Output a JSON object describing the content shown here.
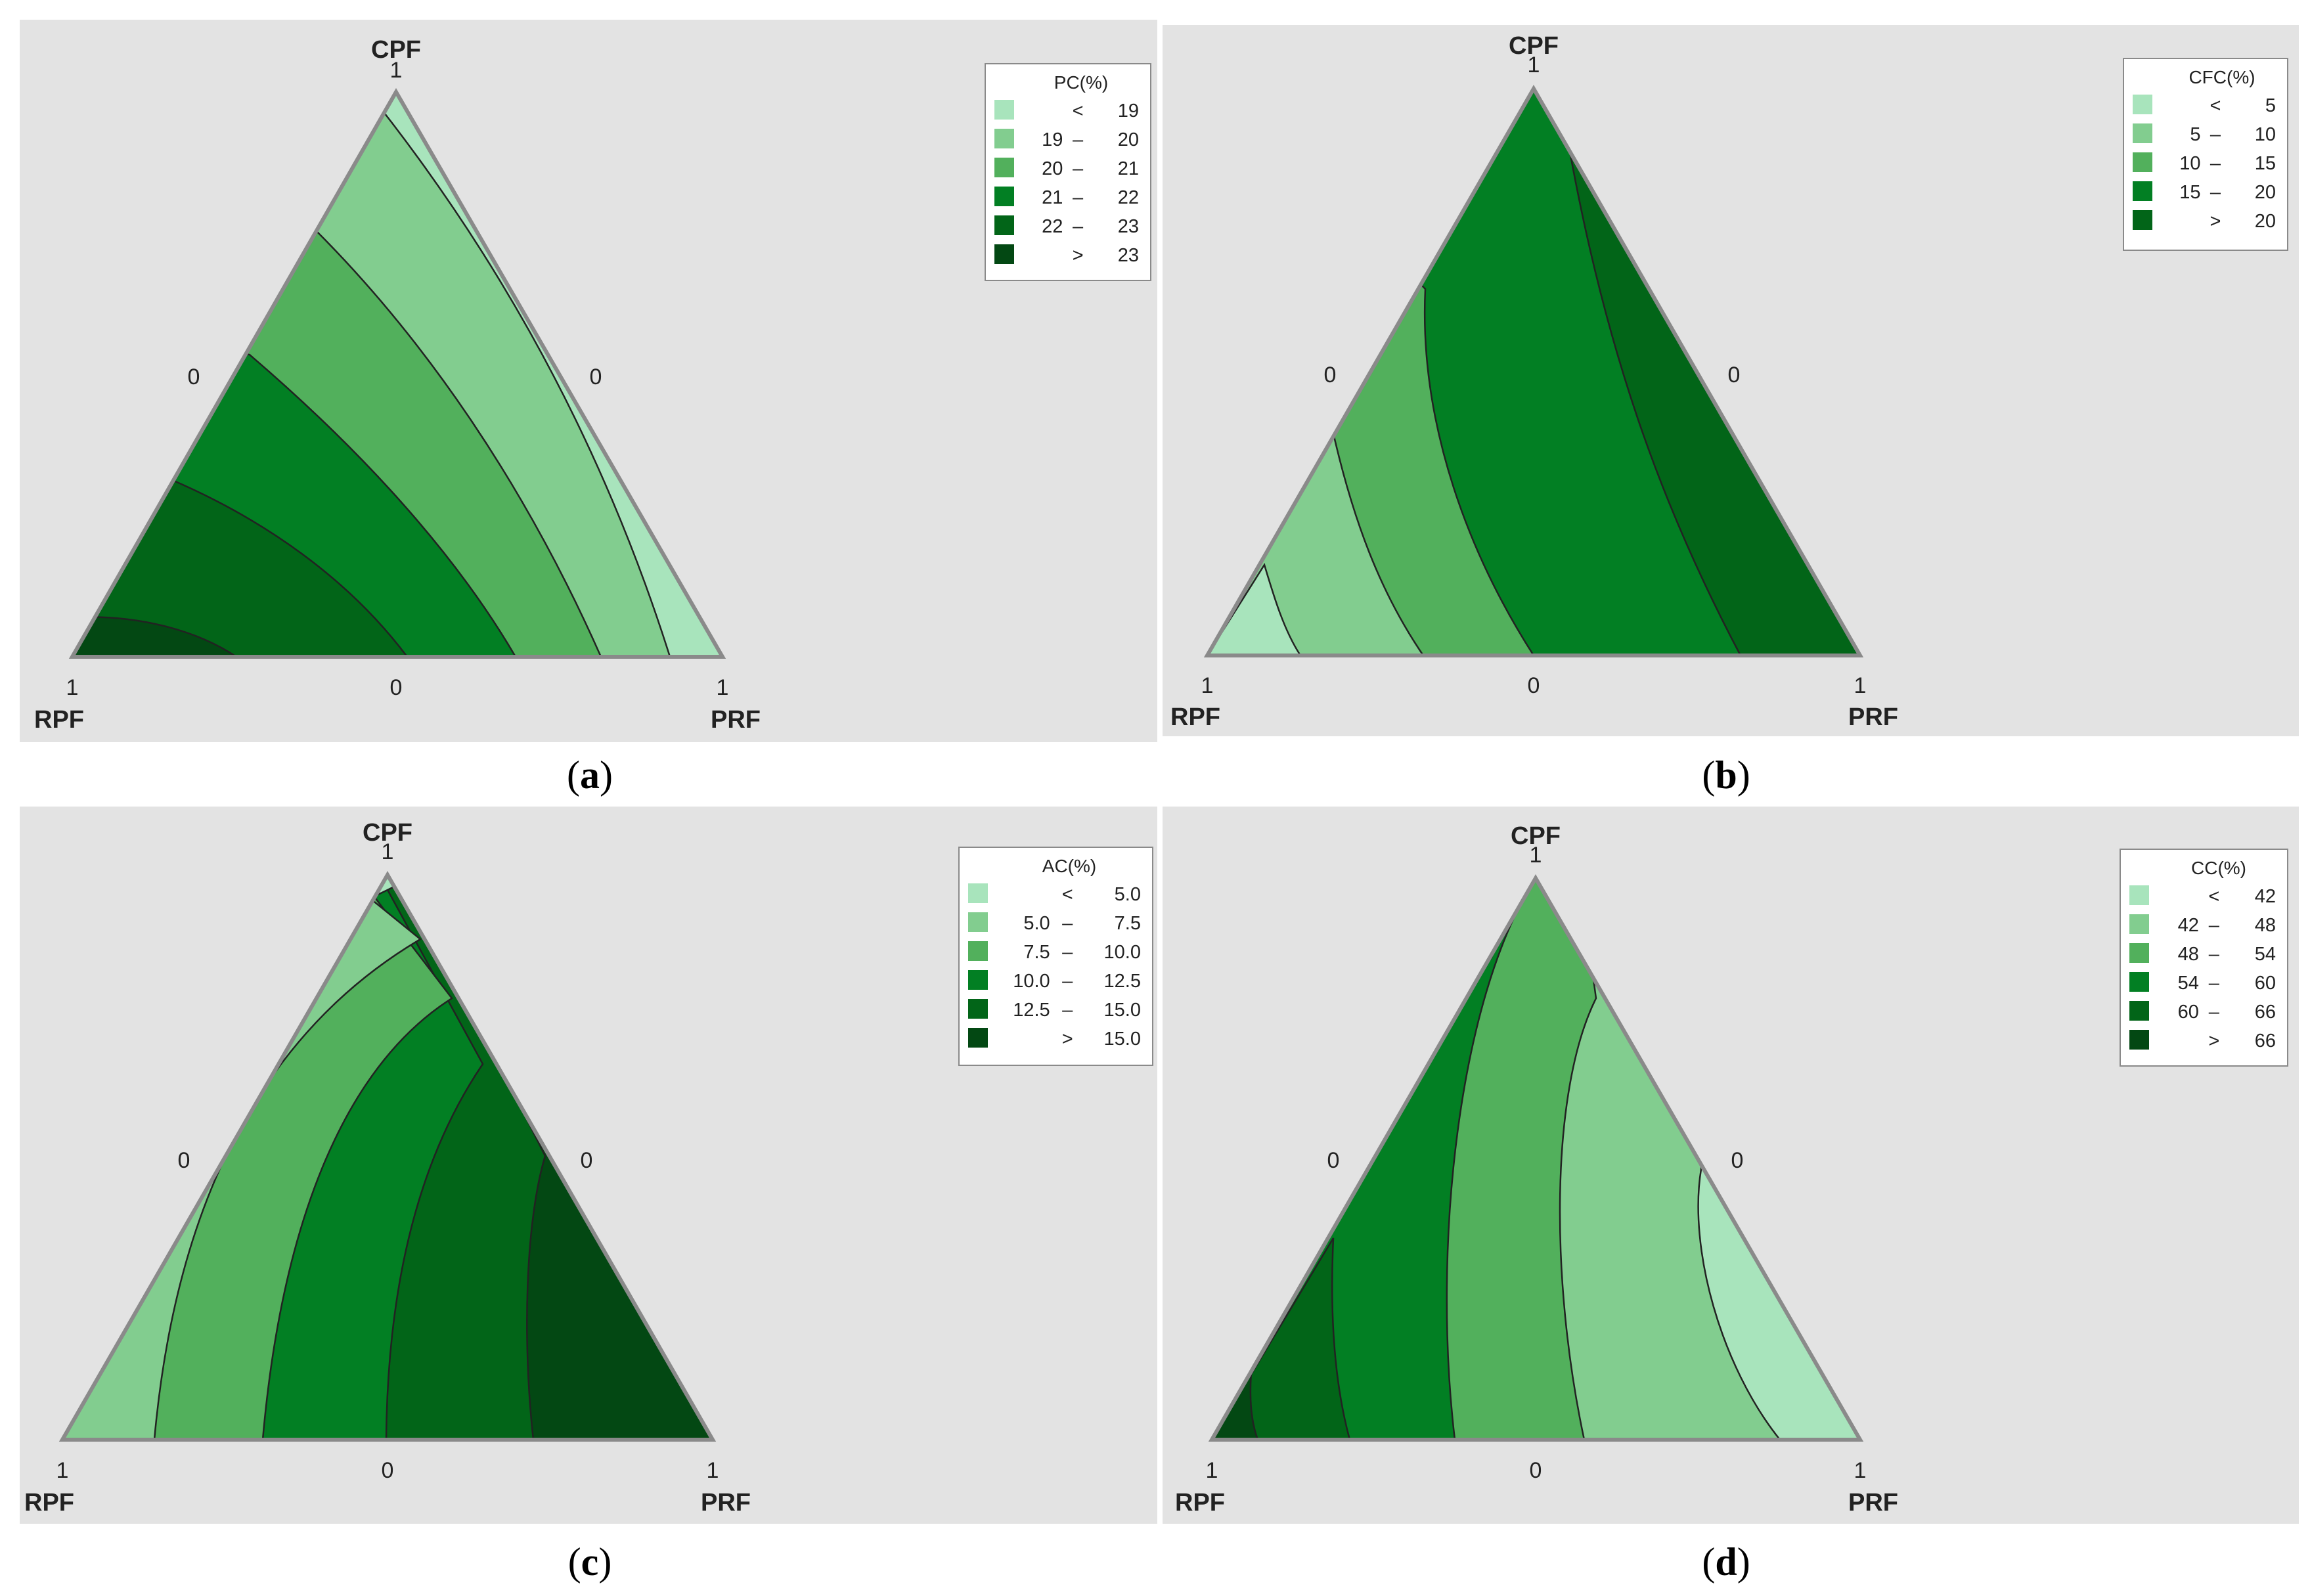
{
  "chart_data": [
    {
      "type": "ternary-contour",
      "caption": "a",
      "vertices": {
        "top": "CPF",
        "left": "RPF",
        "right": "PRF"
      },
      "ticks": {
        "top": "1",
        "left": "1",
        "right": "1",
        "edge_left": "0",
        "edge_right": "0",
        "edge_bottom": "0"
      },
      "legend": {
        "title": "PC(%)",
        "colors": [
          "#a8e4bc",
          "#82cd8f",
          "#52b05c",
          "#027f23",
          "#026518",
          "#034813"
        ],
        "entries": [
          {
            "lo": "",
            "op": "<",
            "hi": "19"
          },
          {
            "lo": "19",
            "op": "–",
            "hi": "20"
          },
          {
            "lo": "20",
            "op": "–",
            "hi": "21"
          },
          {
            "lo": "21",
            "op": "–",
            "hi": "22"
          },
          {
            "lo": "22",
            "op": "–",
            "hi": "23"
          },
          {
            "lo": "",
            "op": ">",
            "hi": "23"
          }
        ]
      },
      "orientation": "up",
      "bands": [
        {
          "color": 1,
          "pts": [
            [
              0,
              100
            ],
            [
              0.3,
              89
            ],
            [
              0.6,
              80
            ],
            [
              0.85,
              69
            ],
            [
              1.05,
              58
            ]
          ]
        },
        {
          "color": 2,
          "pts": [
            [
              0,
              75
            ],
            [
              0.4,
              62
            ],
            [
              0.8,
              50
            ],
            [
              1.1,
              40
            ],
            [
              1.35,
              35
            ]
          ]
        },
        {
          "color": 3,
          "pts": [
            [
              0,
              55
            ],
            [
              0.4,
              46
            ],
            [
              0.8,
              37
            ],
            [
              1.1,
              30
            ],
            [
              1.3,
              25
            ]
          ]
        },
        {
          "color": 4,
          "pts": [
            [
              0,
              26
            ],
            [
              0.3,
              20
            ],
            [
              0.6,
              14
            ],
            [
              0.85,
              9
            ],
            [
              1.1,
              6
            ]
          ]
        },
        {
          "color": 5,
          "pts": [
            [
              0,
              9
            ],
            [
              0.3,
              5
            ],
            [
              0.6,
              2
            ],
            [
              0.8,
              0
            ],
            [
              1,
              0
            ]
          ]
        },
        {
          "color": 1,
          "pts": [
            [
              -0.1,
              100
            ],
            [
              0.3,
              89
            ],
            [
              0.6,
              80
            ],
            [
              0.85,
              69
            ],
            [
              1.05,
              58
            ]
          ]
        }
      ]
    },
    {
      "type": "ternary-contour",
      "caption": "b",
      "vertices": {
        "top": "CPF",
        "left": "RPF",
        "right": "PRF"
      },
      "ticks": {
        "top": "1",
        "left": "1",
        "right": "1",
        "edge_left": "0",
        "edge_right": "0",
        "edge_bottom": "0"
      },
      "legend": {
        "title": "CFC(%)",
        "colors": [
          "#a8e4bc",
          "#82cd8f",
          "#52b05c",
          "#027f23",
          "#026518"
        ],
        "entries": [
          {
            "lo": "",
            "op": "<",
            "hi": "5"
          },
          {
            "lo": "5",
            "op": "–",
            "hi": "10"
          },
          {
            "lo": "10",
            "op": "–",
            "hi": "15"
          },
          {
            "lo": "15",
            "op": "–",
            "hi": "20"
          },
          {
            "lo": "",
            "op": ">",
            "hi": "20"
          }
        ]
      }
    },
    {
      "type": "ternary-contour",
      "caption": "c",
      "vertices": {
        "top": "CPF",
        "left": "RPF",
        "right": "PRF"
      },
      "ticks": {
        "top": "1",
        "left": "1",
        "right": "1",
        "edge_left": "0",
        "edge_right": "0",
        "edge_bottom": "0"
      },
      "legend": {
        "title": "AC(%)",
        "colors": [
          "#a8e4bc",
          "#82cd8f",
          "#52b05c",
          "#027f23",
          "#026518",
          "#034813"
        ],
        "entries": [
          {
            "lo": "",
            "op": "<",
            "hi": "5.0"
          },
          {
            "lo": "5.0",
            "op": "–",
            "hi": "7.5"
          },
          {
            "lo": "7.5",
            "op": "–",
            "hi": "10.0"
          },
          {
            "lo": "10.0",
            "op": "–",
            "hi": "12.5"
          },
          {
            "lo": "12.5",
            "op": "–",
            "hi": "15.0"
          },
          {
            "lo": "",
            "op": ">",
            "hi": "15.0"
          }
        ]
      }
    },
    {
      "type": "ternary-contour",
      "caption": "d",
      "vertices": {
        "top": "CPF",
        "left": "RPF",
        "right": "PRF"
      },
      "ticks": {
        "top": "1",
        "left": "1",
        "right": "1",
        "edge_left": "0",
        "edge_right": "0",
        "edge_bottom": "0"
      },
      "legend": {
        "title": "CC(%)",
        "colors": [
          "#a8e4bc",
          "#82cd8f",
          "#52b05c",
          "#027f23",
          "#026518",
          "#034813"
        ],
        "entries": [
          {
            "lo": "",
            "op": "<",
            "hi": "42"
          },
          {
            "lo": "42",
            "op": "–",
            "hi": "48"
          },
          {
            "lo": "48",
            "op": "–",
            "hi": "54"
          },
          {
            "lo": "54",
            "op": "–",
            "hi": "60"
          },
          {
            "lo": "60",
            "op": "–",
            "hi": "66"
          },
          {
            "lo": "",
            "op": ">",
            "hi": "66"
          }
        ]
      }
    }
  ]
}
